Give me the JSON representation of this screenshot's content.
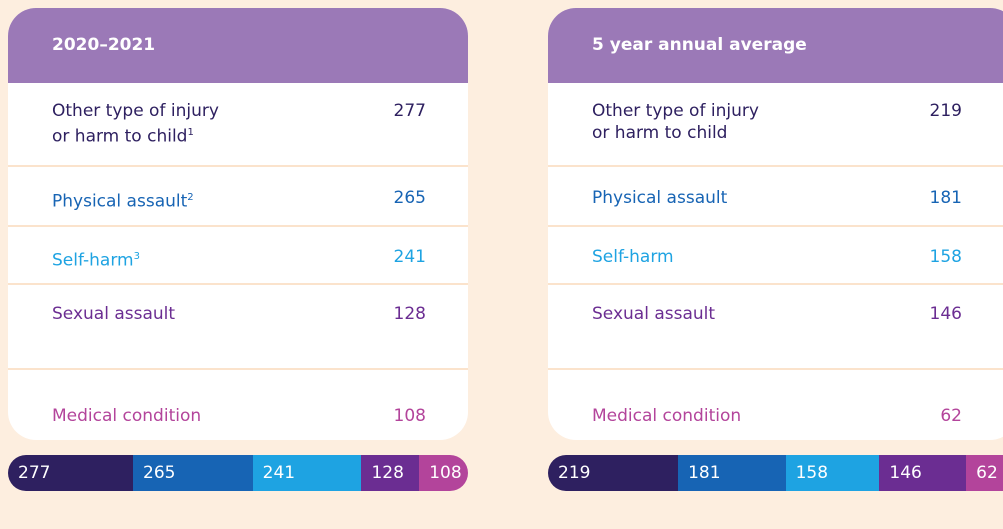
{
  "panels": [
    {
      "title": "2020–2021",
      "rows": [
        {
          "label": "Other type of injury\nor harm to child",
          "note": "1",
          "value": 277,
          "color": "#2e2060"
        },
        {
          "label": "Physical assault",
          "note": "2",
          "value": 265,
          "color": "#1764b4"
        },
        {
          "label": "Self-harm",
          "note": "3",
          "value": 241,
          "color": "#1ea3e2"
        },
        {
          "label": "Sexual assault",
          "value": 128,
          "color": "#6b2d92"
        },
        {
          "label": "Medical condition",
          "value": 108,
          "color": "#b3449b"
        }
      ]
    },
    {
      "title": "5 year annual average",
      "rows": [
        {
          "label": "Other type of injury\nor harm to child",
          "value": 219,
          "color": "#2e2060"
        },
        {
          "label": "Physical assault",
          "value": 181,
          "color": "#1764b4"
        },
        {
          "label": "Self-harm",
          "value": 158,
          "color": "#1ea3e2"
        },
        {
          "label": "Sexual assault",
          "value": 146,
          "color": "#6b2d92"
        },
        {
          "label": "Medical condition",
          "value": 62,
          "color": "#b3449b"
        }
      ]
    }
  ]
}
